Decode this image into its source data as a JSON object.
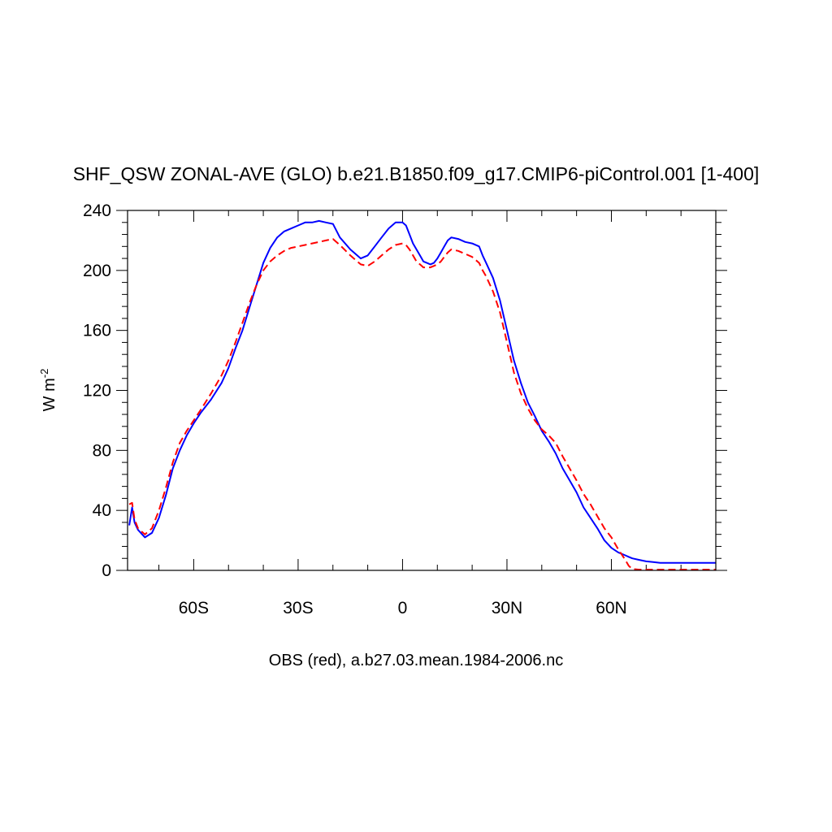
{
  "chart_data": {
    "type": "line",
    "title": "SHF_QSW ZONAL-AVE (GLO) b.e21.B1850.f09_g17.CMIP6-piControl.001 [1-400]",
    "xlabel": "OBS (red), a.b27.03.mean.1984-2006.nc",
    "ylabel_base": "W m",
    "ylabel_exponent": "-2",
    "xlim": [
      -79,
      90
    ],
    "ylim": [
      0,
      240
    ],
    "x_ticks": [
      {
        "value": -60,
        "label": "60S"
      },
      {
        "value": -30,
        "label": "30S"
      },
      {
        "value": 0,
        "label": "0"
      },
      {
        "value": 30,
        "label": "30N"
      },
      {
        "value": 60,
        "label": "60N"
      }
    ],
    "y_ticks": [
      {
        "value": 0,
        "label": "0"
      },
      {
        "value": 40,
        "label": "40"
      },
      {
        "value": 80,
        "label": "80"
      },
      {
        "value": 120,
        "label": "120"
      },
      {
        "value": 160,
        "label": "160"
      },
      {
        "value": 200,
        "label": "200"
      },
      {
        "value": 240,
        "label": "240"
      }
    ],
    "series": [
      {
        "name": "b.e21.B1850.f09_g17.CMIP6-piControl.001",
        "color": "#0000ff",
        "style": "solid",
        "x": [
          -78.5,
          -77.7,
          -77,
          -76,
          -74,
          -72,
          -70,
          -68,
          -66,
          -64,
          -62,
          -60,
          -58,
          -55,
          -52,
          -50,
          -48,
          -46,
          -44,
          -42,
          -40,
          -38,
          -36,
          -34,
          -32,
          -30,
          -28,
          -26,
          -24,
          -22,
          -20,
          -18,
          -15,
          -12,
          -10,
          -8,
          -6,
          -4,
          -2,
          0,
          1,
          2,
          3,
          4,
          5,
          6,
          7,
          8,
          9,
          10,
          11,
          12,
          13,
          14,
          16,
          18,
          20,
          22,
          23,
          24,
          26,
          28,
          30,
          32,
          34,
          36,
          38,
          40,
          42,
          44,
          46,
          48,
          50,
          52,
          54,
          56,
          58,
          60,
          62,
          64,
          65,
          66,
          68,
          70,
          72,
          74,
          76,
          78,
          80,
          82,
          84,
          86,
          88,
          90
        ],
        "values": [
          30,
          42,
          32,
          27,
          22,
          25,
          35,
          50,
          68,
          80,
          90,
          98,
          105,
          114,
          125,
          135,
          148,
          160,
          175,
          190,
          205,
          215,
          222,
          226,
          228,
          230,
          232,
          232,
          233,
          232,
          231,
          222,
          214,
          208,
          210,
          216,
          222,
          228,
          232,
          232,
          230,
          224,
          218,
          214,
          210,
          206,
          205,
          204,
          205,
          208,
          212,
          216,
          220,
          222,
          221,
          219,
          218,
          216,
          210,
          205,
          195,
          180,
          160,
          140,
          125,
          112,
          103,
          93,
          86,
          78,
          68,
          60,
          52,
          42,
          35,
          28,
          20,
          15,
          12,
          10,
          9,
          8,
          7,
          6,
          5.5,
          5,
          5,
          5,
          5,
          5,
          5,
          5,
          5,
          5
        ],
        "values_note": "approximate"
      },
      {
        "name": "OBS",
        "color": "#ff0000",
        "style": "dashed",
        "x": [
          -78.5,
          -77.7,
          -77,
          -76,
          -74,
          -72,
          -70,
          -68,
          -66,
          -64,
          -62,
          -60,
          -58,
          -55,
          -52,
          -50,
          -48,
          -46,
          -44,
          -42,
          -40,
          -38,
          -36,
          -34,
          -32,
          -30,
          -28,
          -26,
          -24,
          -22,
          -20,
          -18,
          -15,
          -12,
          -10,
          -8,
          -6,
          -4,
          -2,
          0,
          1,
          2,
          3,
          4,
          5,
          6,
          7,
          8,
          9,
          10,
          11,
          12,
          13,
          14,
          16,
          18,
          20,
          22,
          23,
          24,
          26,
          28,
          30,
          32,
          34,
          36,
          38,
          40,
          42,
          44,
          46,
          48,
          50,
          52,
          54,
          56,
          58,
          60,
          62,
          64,
          65,
          66,
          68,
          70,
          72,
          74,
          76,
          78,
          80,
          82,
          84,
          86,
          88,
          90
        ],
        "values": [
          44,
          45,
          34,
          28,
          24,
          28,
          40,
          55,
          72,
          85,
          93,
          100,
          107,
          118,
          130,
          140,
          152,
          165,
          178,
          190,
          200,
          206,
          210,
          213,
          215,
          216,
          217,
          218,
          219,
          220,
          221,
          217,
          210,
          204,
          203,
          206,
          210,
          214,
          217,
          218,
          217,
          214,
          210,
          206,
          204,
          202,
          202,
          202,
          203,
          204,
          206,
          209,
          212,
          214,
          213,
          211,
          209,
          205,
          200,
          196,
          186,
          172,
          152,
          132,
          118,
          108,
          100,
          94,
          90,
          85,
          76,
          68,
          60,
          51,
          44,
          36,
          28,
          22,
          14,
          7,
          3,
          1,
          0.5,
          0.5,
          0.5,
          0.5,
          0.5,
          0.5,
          0.5,
          0.5,
          0.5,
          0.5,
          0.5,
          0.5
        ],
        "values_note": "approximate"
      }
    ]
  }
}
